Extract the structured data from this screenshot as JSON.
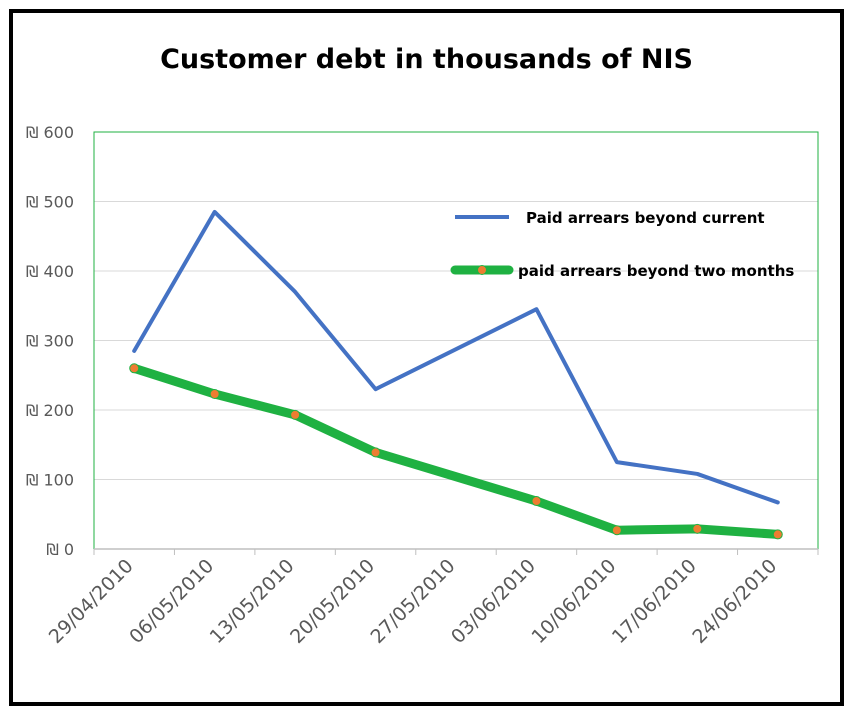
{
  "chart_data": {
    "type": "line",
    "title": "Customer debt in thousands of NIS",
    "xlabel": "",
    "ylabel": "",
    "categories": [
      "29/04/2010",
      "06/05/2010",
      "13/05/2010",
      "20/05/2010",
      "27/05/2010",
      "03/06/2010",
      "10/06/2010",
      "17/06/2010",
      "24/06/2010"
    ],
    "y_tick_labels": [
      "₪ 0",
      "₪ 100",
      "₪ 200",
      "₪ 300",
      "₪ 400",
      "₪ 500",
      "₪ 600"
    ],
    "y_ticks": [
      0,
      100,
      200,
      300,
      400,
      500,
      600
    ],
    "ylim": [
      0,
      600
    ],
    "grid": true,
    "legend_position": "top-right",
    "series": [
      {
        "name": "Paid arrears beyond current",
        "color": "#4472C4",
        "markers": false,
        "x": [
          "29/04/2010",
          "06/05/2010",
          "13/05/2010",
          "20/05/2010",
          "03/06/2010",
          "10/06/2010",
          "17/06/2010",
          "24/06/2010"
        ],
        "values": [
          285,
          485,
          370,
          230,
          345,
          125,
          108,
          67
        ]
      },
      {
        "name": "paid arrears beyond two months",
        "color": "#1FB142",
        "marker_color": "#ED7D31",
        "markers": true,
        "x": [
          "29/04/2010",
          "06/05/2010",
          "13/05/2010",
          "20/05/2010",
          "03/06/2010",
          "10/06/2010",
          "17/06/2010",
          "24/06/2010"
        ],
        "values": [
          260,
          223,
          193,
          139,
          69,
          27,
          29,
          21
        ]
      }
    ]
  }
}
